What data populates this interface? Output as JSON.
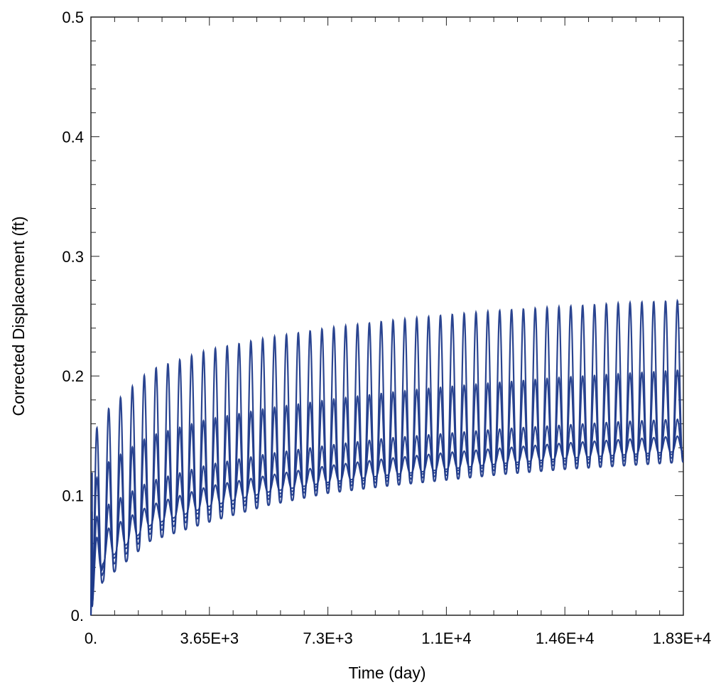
{
  "chart_data": {
    "type": "line",
    "title": "",
    "xlabel": "Time (day)",
    "ylabel": "Corrected Displacement (ft)",
    "xlim": [
      0,
      18250
    ],
    "ylim": [
      0,
      0.5
    ],
    "x_tick_labels": [
      {
        "value": 0,
        "label": "0."
      },
      {
        "value": 3650,
        "label": "3.65E+3"
      },
      {
        "value": 7300,
        "label": "7.3E+3"
      },
      {
        "value": 10950,
        "label": "1.1E+4"
      },
      {
        "value": 14600,
        "label": "1.46E+4"
      },
      {
        "value": 18250,
        "label": "1.83E+4"
      }
    ],
    "y_tick_labels": [
      {
        "value": 0,
        "label": "0."
      },
      {
        "value": 0.1,
        "label": "0.1"
      },
      {
        "value": 0.2,
        "label": "0.2"
      },
      {
        "value": 0.3,
        "label": "0.3"
      },
      {
        "value": 0.4,
        "label": "0.4"
      },
      {
        "value": 0.5,
        "label": "0.5"
      }
    ],
    "grid": false,
    "legend": "none",
    "cycle_period_days": 365,
    "series_color": "#1f3a8a",
    "series": [
      {
        "description_visible": "outer envelope",
        "x": [
          0,
          365,
          1825,
          3650,
          5475,
          7300,
          9125,
          10950,
          12775,
          14600,
          16425,
          18250
        ],
        "peak": [
          0.145,
          0.168,
          0.205,
          0.222,
          0.232,
          0.24,
          0.246,
          0.251,
          0.255,
          0.258,
          0.261,
          0.263
        ],
        "trough": [
          0.0,
          0.028,
          0.062,
          0.078,
          0.092,
          0.102,
          0.108,
          0.113,
          0.118,
          0.122,
          0.125,
          0.128
        ]
      },
      {
        "x": [
          0,
          365,
          1825,
          3650,
          5475,
          7300,
          9125,
          10950,
          12775,
          14600,
          16425,
          18250
        ],
        "peak": [
          0.105,
          0.125,
          0.15,
          0.164,
          0.173,
          0.18,
          0.186,
          0.191,
          0.195,
          0.199,
          0.202,
          0.205
        ],
        "trough": [
          0.0,
          0.035,
          0.068,
          0.084,
          0.097,
          0.106,
          0.112,
          0.117,
          0.122,
          0.126,
          0.129,
          0.132
        ]
      },
      {
        "x": [
          0,
          365,
          1825,
          3650,
          5475,
          7300,
          9125,
          10950,
          12775,
          14600,
          16425,
          18250
        ],
        "peak": [
          0.075,
          0.09,
          0.112,
          0.126,
          0.135,
          0.142,
          0.148,
          0.152,
          0.156,
          0.159,
          0.162,
          0.164
        ],
        "trough": [
          0.0,
          0.04,
          0.072,
          0.088,
          0.1,
          0.109,
          0.115,
          0.12,
          0.125,
          0.129,
          0.132,
          0.135
        ]
      },
      {
        "x": [
          0,
          365,
          1825,
          3650,
          5475,
          7300,
          9125,
          10950,
          12775,
          14600,
          16425,
          18250
        ],
        "peak": [
          0.06,
          0.07,
          0.092,
          0.108,
          0.117,
          0.125,
          0.131,
          0.136,
          0.14,
          0.144,
          0.147,
          0.15
        ],
        "trough": [
          0.0,
          0.043,
          0.075,
          0.091,
          0.103,
          0.111,
          0.117,
          0.122,
          0.127,
          0.131,
          0.134,
          0.137
        ]
      }
    ]
  }
}
